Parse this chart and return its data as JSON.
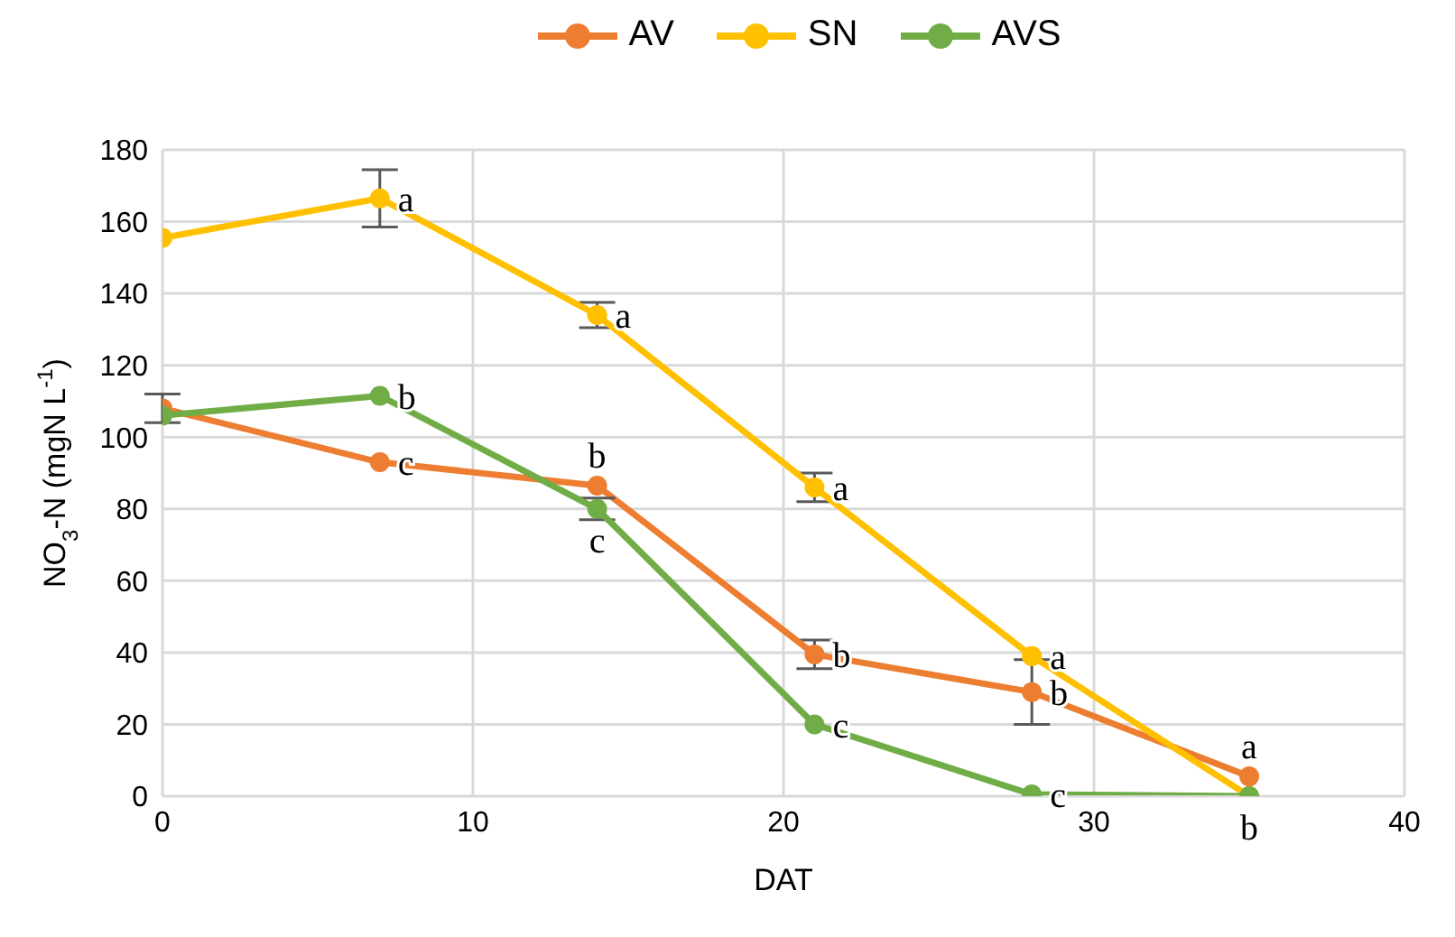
{
  "chart_data": {
    "type": "line",
    "xlabel": "DAT",
    "ylabel": "NO$_{3}$-N (mgN L$^{-1}$)",
    "x": [
      0,
      7,
      14,
      21,
      28,
      35
    ],
    "series": [
      {
        "name": "AV",
        "color": "#ed7d31",
        "values": [
          108,
          93,
          86.5,
          39.5,
          29,
          5.5
        ],
        "errors": [
          4,
          null,
          null,
          4,
          9,
          null
        ]
      },
      {
        "name": "SN",
        "color": "#ffc000",
        "values": [
          155.5,
          166.5,
          134,
          86,
          39,
          0
        ],
        "errors": [
          null,
          8,
          3.5,
          4,
          null,
          null
        ]
      },
      {
        "name": "AVS",
        "color": "#70ad47",
        "values": [
          106,
          111.5,
          80,
          20,
          0.5,
          0
        ],
        "errors": [
          null,
          null,
          3,
          null,
          null,
          null
        ]
      }
    ],
    "annotations": [
      {
        "text": "c",
        "x": 7,
        "y": 93
      },
      {
        "text": "b",
        "x": 14,
        "y": 86.5
      },
      {
        "text": "b",
        "x": 21,
        "y": 39.5
      },
      {
        "text": "b",
        "x": 28,
        "y": 29
      },
      {
        "text": "a",
        "x": 35,
        "y": 5.5
      },
      {
        "text": "a",
        "x": 7,
        "y": 166.5
      },
      {
        "text": "a",
        "x": 14,
        "y": 134
      },
      {
        "text": "a",
        "x": 21,
        "y": 86
      },
      {
        "text": "a",
        "x": 28,
        "y": 39
      },
      {
        "text": "b",
        "x": 35,
        "y": 0
      },
      {
        "text": "b",
        "x": 7,
        "y": 111.5
      },
      {
        "text": "c",
        "x": 14,
        "y": 80
      },
      {
        "text": "c",
        "x": 21,
        "y": 20
      },
      {
        "text": "c",
        "x": 28,
        "y": 0.5
      }
    ],
    "xlim": [
      0,
      40
    ],
    "xticks": [
      0,
      10,
      20,
      30,
      40
    ],
    "ylim": [
      0,
      180
    ],
    "yticks": [
      0,
      20,
      40,
      60,
      80,
      100,
      120,
      140,
      160,
      180
    ],
    "grid": true,
    "legend": "top",
    "marker": "circle",
    "line_style": "solid"
  }
}
